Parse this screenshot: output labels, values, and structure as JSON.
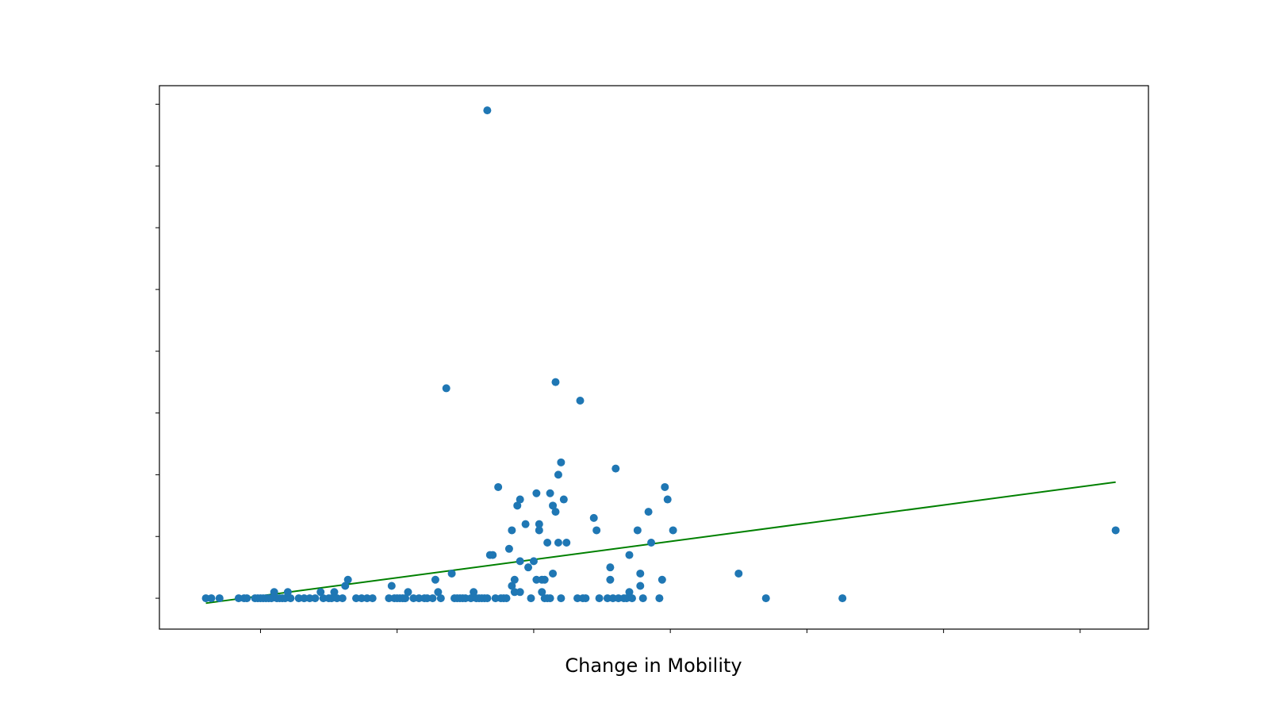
{
  "chart_data": {
    "type": "scatter",
    "title": "",
    "xlabel": "Change in Mobility",
    "ylabel": "",
    "xlim": [
      -0.77,
      2.85
    ],
    "ylim": [
      -0.25,
      4.15
    ],
    "x_ticks": [
      -0.4,
      0.1,
      0.6,
      1.1,
      1.6,
      2.1,
      2.6
    ],
    "y_ticks": [
      0,
      0.5,
      1.0,
      1.5,
      2.0,
      2.5,
      3.0,
      3.5,
      4.0
    ],
    "grid": false,
    "legend": "none",
    "colors": {
      "points": "#1f77b4",
      "trend_line": "#008000"
    },
    "series": [
      {
        "type": "scatter",
        "points": [
          [
            -0.6,
            0
          ],
          [
            -0.58,
            0
          ],
          [
            -0.55,
            0
          ],
          [
            -0.48,
            0
          ],
          [
            -0.46,
            0
          ],
          [
            -0.45,
            0
          ],
          [
            -0.42,
            0
          ],
          [
            -0.41,
            0
          ],
          [
            -0.4,
            0
          ],
          [
            -0.39,
            0
          ],
          [
            -0.38,
            0
          ],
          [
            -0.37,
            0
          ],
          [
            -0.36,
            0
          ],
          [
            -0.35,
            0.05
          ],
          [
            -0.34,
            0
          ],
          [
            -0.33,
            0
          ],
          [
            -0.32,
            0
          ],
          [
            -0.31,
            0
          ],
          [
            -0.3,
            0.05
          ],
          [
            -0.29,
            0
          ],
          [
            -0.26,
            0
          ],
          [
            -0.24,
            0
          ],
          [
            -0.22,
            0
          ],
          [
            -0.2,
            0
          ],
          [
            -0.18,
            0.05
          ],
          [
            -0.17,
            0
          ],
          [
            -0.15,
            0
          ],
          [
            -0.14,
            0
          ],
          [
            -0.13,
            0.05
          ],
          [
            -0.12,
            0
          ],
          [
            -0.1,
            0
          ],
          [
            -0.09,
            0.1
          ],
          [
            -0.08,
            0.15
          ],
          [
            -0.05,
            0
          ],
          [
            -0.03,
            0
          ],
          [
            -0.01,
            0
          ],
          [
            0.01,
            0
          ],
          [
            0.07,
            0
          ],
          [
            0.08,
            0.1
          ],
          [
            0.09,
            0
          ],
          [
            0.1,
            0
          ],
          [
            0.11,
            0
          ],
          [
            0.12,
            0
          ],
          [
            0.13,
            0
          ],
          [
            0.14,
            0.05
          ],
          [
            0.16,
            0
          ],
          [
            0.18,
            0
          ],
          [
            0.2,
            0
          ],
          [
            0.21,
            0
          ],
          [
            0.23,
            0
          ],
          [
            0.24,
            0.15
          ],
          [
            0.25,
            0.05
          ],
          [
            0.26,
            0
          ],
          [
            0.28,
            1.7
          ],
          [
            0.3,
            0.2
          ],
          [
            0.31,
            0
          ],
          [
            0.32,
            0
          ],
          [
            0.33,
            0
          ],
          [
            0.34,
            0
          ],
          [
            0.35,
            0
          ],
          [
            0.37,
            0
          ],
          [
            0.38,
            0.05
          ],
          [
            0.39,
            0
          ],
          [
            0.4,
            0
          ],
          [
            0.41,
            0
          ],
          [
            0.42,
            0
          ],
          [
            0.43,
            0
          ],
          [
            0.44,
            0.35
          ],
          [
            0.45,
            0.35
          ],
          [
            0.46,
            0
          ],
          [
            0.47,
            0.9
          ],
          [
            0.48,
            0
          ],
          [
            0.49,
            0
          ],
          [
            0.5,
            0
          ],
          [
            0.51,
            0.4
          ],
          [
            0.52,
            0.55
          ],
          [
            0.52,
            0.1
          ],
          [
            0.53,
            0.05
          ],
          [
            0.53,
            0.15
          ],
          [
            0.54,
            0.75
          ],
          [
            0.55,
            0.8
          ],
          [
            0.55,
            0.05
          ],
          [
            0.55,
            0.3
          ],
          [
            0.57,
            0.6
          ],
          [
            0.58,
            0.25
          ],
          [
            0.59,
            0
          ],
          [
            0.6,
            0.3
          ],
          [
            0.61,
            0.15
          ],
          [
            0.61,
            0.85
          ],
          [
            0.62,
            0.55
          ],
          [
            0.62,
            0.6
          ],
          [
            0.63,
            0.05
          ],
          [
            0.63,
            0.15
          ],
          [
            0.64,
            0.15
          ],
          [
            0.64,
            0
          ],
          [
            0.65,
            0.45
          ],
          [
            0.65,
            0
          ],
          [
            0.66,
            0
          ],
          [
            0.66,
            0.85
          ],
          [
            0.67,
            0.75
          ],
          [
            0.67,
            0.2
          ],
          [
            0.68,
            0.7
          ],
          [
            0.68,
            1.75
          ],
          [
            0.69,
            0.45
          ],
          [
            0.69,
            1.0
          ],
          [
            0.7,
            1.1
          ],
          [
            0.7,
            0
          ],
          [
            0.71,
            0.8
          ],
          [
            0.72,
            0.45
          ],
          [
            0.76,
            0
          ],
          [
            0.77,
            1.6
          ],
          [
            0.78,
            0
          ],
          [
            0.79,
            0
          ],
          [
            0.82,
            0.65
          ],
          [
            0.83,
            0.55
          ],
          [
            0.84,
            0
          ],
          [
            0.87,
            0
          ],
          [
            0.88,
            0.25
          ],
          [
            0.88,
            0.15
          ],
          [
            0.89,
            0
          ],
          [
            0.9,
            1.05
          ],
          [
            0.91,
            0
          ],
          [
            0.93,
            0
          ],
          [
            0.94,
            0
          ],
          [
            0.95,
            0.35
          ],
          [
            0.95,
            0.05
          ],
          [
            0.96,
            0
          ],
          [
            0.98,
            0.55
          ],
          [
            0.99,
            0.2
          ],
          [
            0.99,
            0.1
          ],
          [
            1.0,
            0
          ],
          [
            1.02,
            0.7
          ],
          [
            1.03,
            0.45
          ],
          [
            1.06,
            0
          ],
          [
            1.07,
            0.15
          ],
          [
            1.08,
            0.9
          ],
          [
            1.09,
            0.8
          ],
          [
            1.11,
            0.55
          ],
          [
            1.35,
            0.2
          ],
          [
            1.45,
            0
          ],
          [
            1.73,
            0
          ],
          [
            2.73,
            0.55
          ],
          [
            0.43,
            3.95
          ]
        ]
      },
      {
        "type": "line",
        "x": [
          -0.6,
          2.73
        ],
        "y": [
          -0.04,
          0.94
        ]
      }
    ]
  }
}
